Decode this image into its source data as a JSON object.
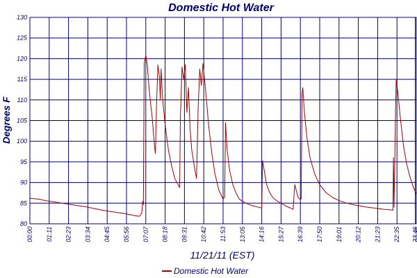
{
  "colors": {
    "axis_text": "#00006e",
    "grid": "#00006e",
    "series": "#a00000",
    "background": "#ffffff"
  },
  "chart_data": {
    "type": "line",
    "title": "Domestic Hot Water",
    "xlabel": "11/21/11 (EST)",
    "ylabel": "Degrees F",
    "ylim": [
      80,
      130
    ],
    "yticks": [
      80,
      85,
      90,
      95,
      100,
      105,
      110,
      115,
      120,
      125,
      130
    ],
    "xlim_hours": [
      0,
      24
    ],
    "xtick_labels": [
      "00:00",
      "01:11",
      "02:23",
      "03:34",
      "04:45",
      "05:56",
      "07:07",
      "08:18",
      "09:31",
      "10:42",
      "11:53",
      "13:05",
      "14:16",
      "15:27",
      "16:39",
      "17:50",
      "19:01",
      "20:12",
      "21:23",
      "22:35",
      "23:46",
      "23:46"
    ],
    "grid": true,
    "legend_position": "bottom-center",
    "series": [
      {
        "name": "Domestic Hot Water",
        "points": [
          [
            0.0,
            86.2
          ],
          [
            0.5,
            86.0
          ],
          [
            1.0,
            85.6
          ],
          [
            1.5,
            85.3
          ],
          [
            2.0,
            85.0
          ],
          [
            2.5,
            84.7
          ],
          [
            3.0,
            84.4
          ],
          [
            3.5,
            84.1
          ],
          [
            4.0,
            83.7
          ],
          [
            4.5,
            83.3
          ],
          [
            5.0,
            83.0
          ],
          [
            5.5,
            82.7
          ],
          [
            6.0,
            82.4
          ],
          [
            6.5,
            82.0
          ],
          [
            6.8,
            81.8
          ],
          [
            6.95,
            82.6
          ],
          [
            7.0,
            85.4
          ],
          [
            7.05,
            84.6
          ],
          [
            7.1,
            119.0
          ],
          [
            7.2,
            120.8
          ],
          [
            7.3,
            118.2
          ],
          [
            7.4,
            113.0
          ],
          [
            7.5,
            109.0
          ],
          [
            7.6,
            105.5
          ],
          [
            7.75,
            98.5
          ],
          [
            7.8,
            97.0
          ],
          [
            7.85,
            107.0
          ],
          [
            7.95,
            118.5
          ],
          [
            8.05,
            115.5
          ],
          [
            8.1,
            110.0
          ],
          [
            8.15,
            117.5
          ],
          [
            8.25,
            110.0
          ],
          [
            8.4,
            104.0
          ],
          [
            8.6,
            98.0
          ],
          [
            8.8,
            94.0
          ],
          [
            9.0,
            91.0
          ],
          [
            9.2,
            89.5
          ],
          [
            9.3,
            88.8
          ],
          [
            9.35,
            106.0
          ],
          [
            9.45,
            118.0
          ],
          [
            9.55,
            115.0
          ],
          [
            9.65,
            118.5
          ],
          [
            9.75,
            107.0
          ],
          [
            9.85,
            113.0
          ],
          [
            9.95,
            103.0
          ],
          [
            10.05,
            98.0
          ],
          [
            10.25,
            93.0
          ],
          [
            10.35,
            91.0
          ],
          [
            10.45,
            108.0
          ],
          [
            10.55,
            117.5
          ],
          [
            10.65,
            113.5
          ],
          [
            10.75,
            118.8
          ],
          [
            10.9,
            113.0
          ],
          [
            11.1,
            104.0
          ],
          [
            11.3,
            97.0
          ],
          [
            11.5,
            92.0
          ],
          [
            11.75,
            88.0
          ],
          [
            12.0,
            86.0
          ],
          [
            12.1,
            86.5
          ],
          [
            12.15,
            104.5
          ],
          [
            12.25,
            98.0
          ],
          [
            12.4,
            93.0
          ],
          [
            12.6,
            89.5
          ],
          [
            12.8,
            87.5
          ],
          [
            13.0,
            86.0
          ],
          [
            13.3,
            85.2
          ],
          [
            13.6,
            84.7
          ],
          [
            13.9,
            84.3
          ],
          [
            14.2,
            84.0
          ],
          [
            14.4,
            83.8
          ],
          [
            14.45,
            95.3
          ],
          [
            14.55,
            93.0
          ],
          [
            14.7,
            89.5
          ],
          [
            14.9,
            87.5
          ],
          [
            15.1,
            86.3
          ],
          [
            15.4,
            85.4
          ],
          [
            15.7,
            84.8
          ],
          [
            15.95,
            84.2
          ],
          [
            16.2,
            83.8
          ],
          [
            16.35,
            83.5
          ],
          [
            16.45,
            89.5
          ],
          [
            16.55,
            88.0
          ],
          [
            16.65,
            86.5
          ],
          [
            16.75,
            86.0
          ],
          [
            16.85,
            86.0
          ],
          [
            16.9,
            111.5
          ],
          [
            16.95,
            113.0
          ],
          [
            17.05,
            107.0
          ],
          [
            17.2,
            101.0
          ],
          [
            17.4,
            96.0
          ],
          [
            17.7,
            92.0
          ],
          [
            18.0,
            89.5
          ],
          [
            18.4,
            87.5
          ],
          [
            18.8,
            86.4
          ],
          [
            19.2,
            85.6
          ],
          [
            19.6,
            85.1
          ],
          [
            20.0,
            84.7
          ],
          [
            20.4,
            84.4
          ],
          [
            20.8,
            84.1
          ],
          [
            21.2,
            83.9
          ],
          [
            21.6,
            83.7
          ],
          [
            22.0,
            83.5
          ],
          [
            22.3,
            83.4
          ],
          [
            22.55,
            83.3
          ],
          [
            22.58,
            96.0
          ],
          [
            22.62,
            84.0
          ],
          [
            22.68,
            100.0
          ],
          [
            22.75,
            114.8
          ],
          [
            22.85,
            112.0
          ],
          [
            23.0,
            106.0
          ],
          [
            23.2,
            99.0
          ],
          [
            23.4,
            94.5
          ],
          [
            23.6,
            91.5
          ],
          [
            23.8,
            89.0
          ],
          [
            24.0,
            87.2
          ]
        ]
      }
    ]
  }
}
